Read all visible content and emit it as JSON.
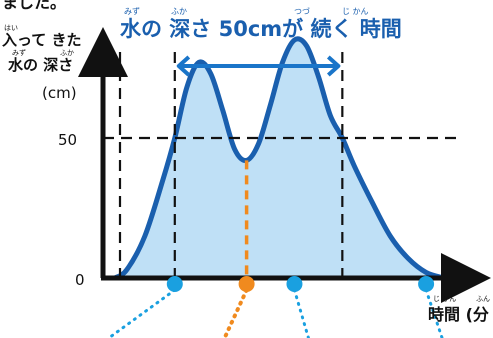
{
  "colors": {
    "curve": "#1a5fae",
    "fill": "#bfe0f6",
    "axis": "#111111",
    "dash": "#111111",
    "marker_blue": "#1aa0e0",
    "marker_orange": "#f08a1e",
    "highlight_blue": "#1a75c9",
    "dotted_blue": "#1aa0e0",
    "dotted_orange": "#f08a1e"
  },
  "header": {
    "top_partial_text": "ました。"
  },
  "chart_data": {
    "type": "area",
    "title": "水の 深さ 50cmが 続く 時間",
    "title_ruby": [
      "みず",
      "ふか",
      "つづ",
      "じ かん"
    ],
    "ylabel_lines": [
      "入って きた",
      "水の 深さ",
      "(cm)"
    ],
    "ylabel_ruby": [
      "はい",
      "みず",
      "ふか"
    ],
    "xlabel": "時間 (分",
    "xlabel_ruby": [
      "じ かん",
      "ふん"
    ],
    "y_ticks": [
      0,
      50
    ],
    "ylim": [
      0,
      100
    ],
    "threshold": 50,
    "curve": [
      [
        0,
        0
      ],
      [
        2,
        3
      ],
      [
        5,
        15
      ],
      [
        8,
        35
      ],
      [
        10,
        50
      ],
      [
        12,
        68
      ],
      [
        14,
        77
      ],
      [
        16,
        73
      ],
      [
        18,
        60
      ],
      [
        20,
        46
      ],
      [
        22,
        42
      ],
      [
        24,
        48
      ],
      [
        26,
        62
      ],
      [
        28,
        77
      ],
      [
        30,
        85
      ],
      [
        32,
        83
      ],
      [
        34,
        72
      ],
      [
        36,
        58
      ],
      [
        38,
        50
      ],
      [
        40,
        40
      ],
      [
        43,
        27
      ],
      [
        46,
        15
      ],
      [
        49,
        7
      ],
      [
        52,
        2
      ],
      [
        55,
        0
      ]
    ],
    "markers_x": [
      10,
      22,
      30,
      52
    ],
    "marker_kinds": [
      "blue",
      "orange",
      "blue",
      "blue"
    ],
    "dashed_verticals_x": [
      10,
      22,
      38
    ],
    "span_start": 10,
    "span_end": 38,
    "xlim": [
      -2,
      58
    ]
  }
}
